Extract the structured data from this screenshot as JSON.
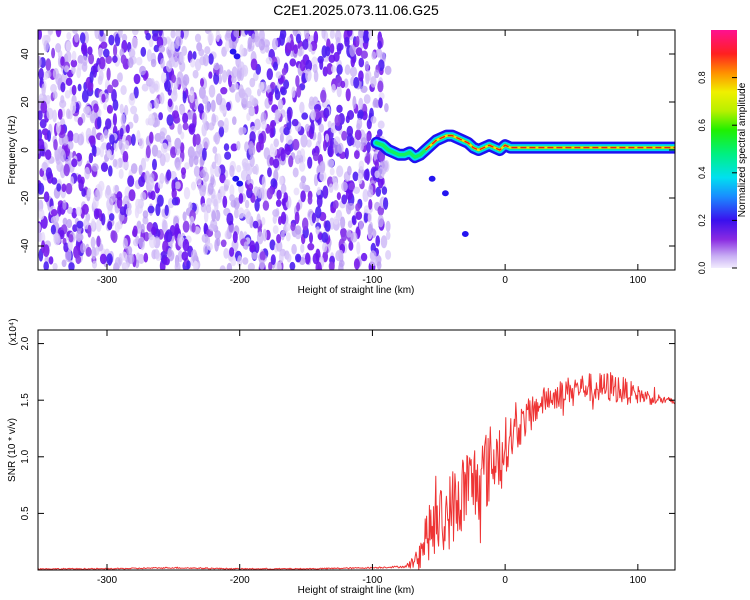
{
  "title": "C2E1.2025.073.11.06.G25",
  "colors": {
    "speckle_violet": "#6a14ee",
    "speckle_light": "#c8b0f6",
    "snr_line": "#ee3434",
    "axis": "#000000"
  },
  "colorbar": {
    "label": "Normalized spectral amplitude",
    "ticks": [
      "0.0",
      "0.2",
      "0.4",
      "0.6",
      "0.8"
    ],
    "tick_values": [
      0.0,
      0.2,
      0.4,
      0.6,
      0.8
    ],
    "range": [
      0,
      1
    ]
  },
  "chart_data": [
    {
      "type": "heatmap",
      "xlabel": "Height of straight line (km)",
      "ylabel": "Frequency (Hz)",
      "xlim": [
        -352,
        128
      ],
      "ylim": [
        -50,
        50
      ],
      "xticks": [
        -300,
        -200,
        -100,
        0,
        100
      ],
      "xtick_labels": [
        "-300",
        "-200",
        "-100",
        "0",
        "100"
      ],
      "yticks": [
        -40,
        -20,
        0,
        20,
        40
      ],
      "ytick_labels": [
        "-40",
        "-20",
        "0",
        "20",
        "40"
      ],
      "noise_region_x": [
        -352,
        -88
      ],
      "signal_track": {
        "x": [
          -97,
          -92,
          -88,
          -84,
          -80,
          -76,
          -72,
          -68,
          -64,
          -60,
          -56,
          -52,
          -48,
          -44,
          -40,
          -36,
          -32,
          -28,
          -24,
          -20,
          -16,
          -12,
          -8,
          -4,
          0,
          4,
          10,
          20,
          30,
          40,
          50,
          60,
          70,
          80,
          90,
          100,
          110,
          120,
          128
        ],
        "y": [
          3,
          2,
          0,
          -1,
          -2,
          -2,
          -1,
          -3,
          -2,
          0,
          2,
          4,
          5,
          6,
          6,
          5,
          4,
          3,
          1,
          0,
          1,
          2,
          1,
          0,
          2,
          1,
          1,
          1,
          1,
          1,
          1,
          1,
          1,
          1,
          1,
          1,
          1,
          1,
          1
        ]
      },
      "peak_amplitude_start_x": -60,
      "colorscale": "rainbow"
    },
    {
      "type": "line",
      "xlabel": "Height of straight line (km)",
      "ylabel": "SNR (10 * v/v)",
      "yscale_label": "(x10⁴)",
      "xlim": [
        -352,
        128
      ],
      "ylim": [
        0,
        2.12
      ],
      "xticks": [
        -300,
        -200,
        -100,
        0,
        100
      ],
      "xtick_labels": [
        "-300",
        "-200",
        "-100",
        "0",
        "100"
      ],
      "yticks": [
        0.5,
        1.0,
        1.5,
        2.0
      ],
      "ytick_labels": [
        "0.5",
        "1.0",
        "1.5",
        "2.0"
      ],
      "series": [
        {
          "x": [
            -352,
            -300,
            -250,
            -200,
            -150,
            -100,
            -75,
            -65,
            -60,
            -50,
            -40,
            -30,
            -20,
            -10,
            0,
            10,
            20,
            30,
            40,
            50,
            60,
            70,
            80,
            90,
            100,
            110,
            120,
            128
          ],
          "y": [
            0.01,
            0.01,
            0.02,
            0.01,
            0.01,
            0.02,
            0.03,
            0.1,
            0.3,
            0.4,
            0.55,
            0.7,
            0.8,
            0.95,
            1.1,
            1.25,
            1.4,
            1.5,
            1.55,
            1.6,
            1.62,
            1.6,
            1.62,
            1.58,
            1.55,
            1.52,
            1.5,
            1.48
          ],
          "noise_amplitude": [
            0.005,
            0.005,
            0.006,
            0.005,
            0.005,
            0.006,
            0.01,
            0.1,
            0.22,
            0.3,
            0.35,
            0.38,
            0.38,
            0.36,
            0.25,
            0.18,
            0.14,
            0.12,
            0.12,
            0.12,
            0.12,
            0.14,
            0.14,
            0.12,
            0.08,
            0.06,
            0.04,
            0.03
          ]
        }
      ]
    }
  ]
}
